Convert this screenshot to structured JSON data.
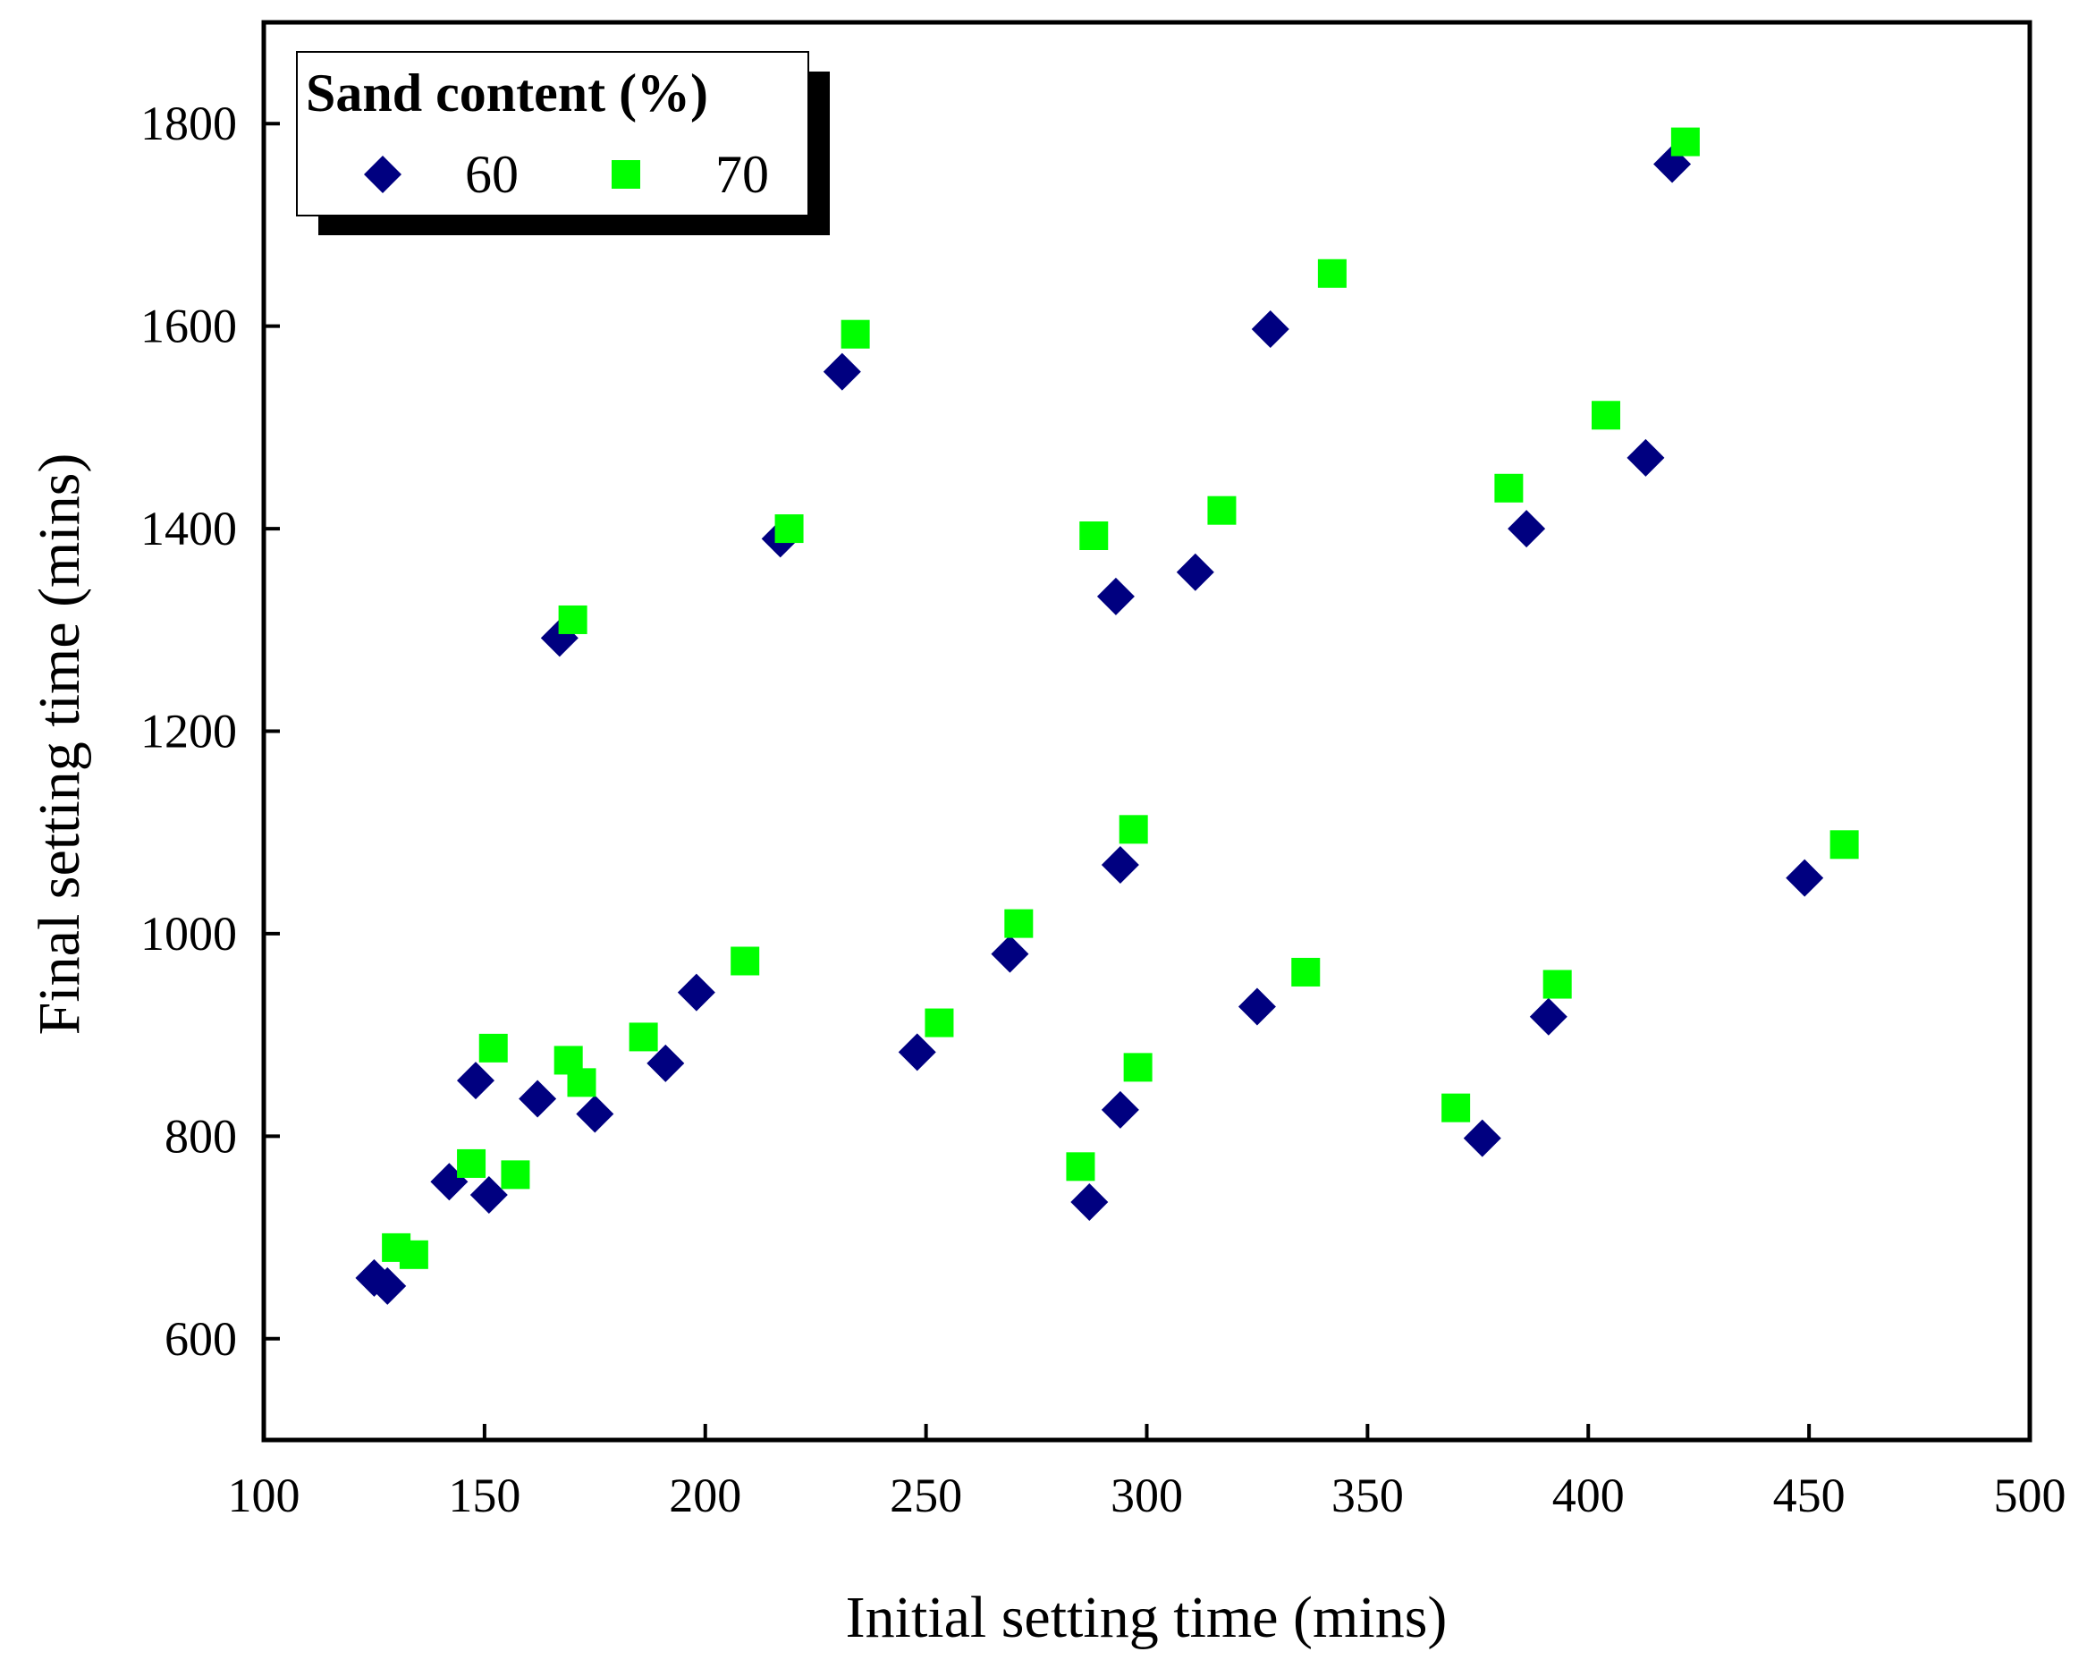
{
  "chart_data": {
    "type": "scatter",
    "title": "",
    "xlabel": "Initial setting time (mins)",
    "ylabel": "Final setting time (mins)",
    "xlim": [
      100,
      500
    ],
    "ylim": [
      500,
      1900
    ],
    "xticks": [
      100,
      150,
      200,
      250,
      300,
      350,
      400,
      450,
      500
    ],
    "yticks": [
      600,
      800,
      1000,
      1200,
      1400,
      1600,
      1800
    ],
    "grid": false,
    "legend": {
      "title": "Sand content (%)",
      "placement": "top-left"
    },
    "series": [
      {
        "name": "60",
        "marker": "diamond",
        "color": "#000080",
        "points": [
          [
            125,
            660
          ],
          [
            128,
            652
          ],
          [
            142,
            755
          ],
          [
            148,
            855
          ],
          [
            151,
            742
          ],
          [
            162,
            837
          ],
          [
            167,
            1292
          ],
          [
            175,
            822
          ],
          [
            191,
            872
          ],
          [
            198,
            942
          ],
          [
            217,
            1390
          ],
          [
            231,
            1555
          ],
          [
            248,
            883
          ],
          [
            269,
            980
          ],
          [
            287,
            735
          ],
          [
            293,
            1333
          ],
          [
            294,
            1068
          ],
          [
            294,
            826
          ],
          [
            311,
            1357
          ],
          [
            325,
            928
          ],
          [
            328,
            1597
          ],
          [
            376,
            798
          ],
          [
            386,
            1400
          ],
          [
            391,
            918
          ],
          [
            413,
            1470
          ],
          [
            419,
            1760
          ],
          [
            449,
            1055
          ]
        ]
      },
      {
        "name": "70",
        "marker": "square",
        "color": "#00FF00",
        "points": [
          [
            130,
            690
          ],
          [
            134,
            683
          ],
          [
            147,
            773
          ],
          [
            152,
            887
          ],
          [
            157,
            762
          ],
          [
            169,
            875
          ],
          [
            170,
            1310
          ],
          [
            172,
            853
          ],
          [
            186,
            898
          ],
          [
            209,
            973
          ],
          [
            219,
            1400
          ],
          [
            234,
            1592
          ],
          [
            253,
            912
          ],
          [
            271,
            1010
          ],
          [
            285,
            770
          ],
          [
            288,
            1393
          ],
          [
            297,
            1103
          ],
          [
            298,
            868
          ],
          [
            317,
            1418
          ],
          [
            336,
            962
          ],
          [
            342,
            1652
          ],
          [
            370,
            828
          ],
          [
            382,
            1440
          ],
          [
            393,
            950
          ],
          [
            404,
            1512
          ],
          [
            422,
            1782
          ],
          [
            458,
            1088
          ]
        ]
      }
    ]
  }
}
